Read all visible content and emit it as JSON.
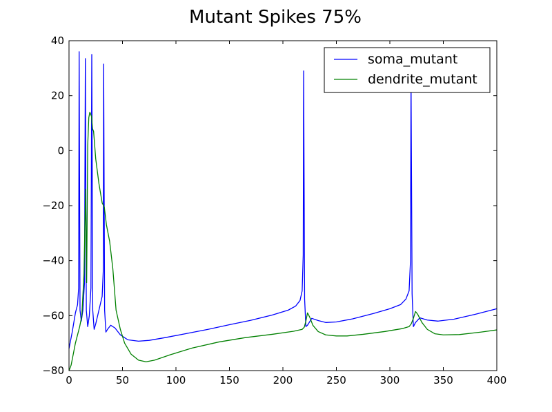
{
  "chart_data": {
    "type": "line",
    "title": "Mutant Spikes 75%",
    "xlabel": "",
    "ylabel": "",
    "xlim": [
      0,
      400
    ],
    "ylim": [
      -80,
      40
    ],
    "x_ticks": [
      0,
      50,
      100,
      150,
      200,
      250,
      300,
      350,
      400
    ],
    "y_ticks": [
      -80,
      -60,
      -40,
      -20,
      0,
      20,
      40
    ],
    "x_tick_labels": [
      "0",
      "50",
      "100",
      "150",
      "200",
      "250",
      "300",
      "350",
      "400"
    ],
    "y_tick_labels": [
      "−80",
      "−60",
      "−40",
      "−20",
      "0",
      "20",
      "40"
    ],
    "grid": false,
    "legend": "top-right",
    "series": [
      {
        "name": "soma_mutant",
        "color": "#0000ff",
        "points": [
          [
            0,
            -72
          ],
          [
            3,
            -66
          ],
          [
            6,
            -59
          ],
          [
            8,
            -56
          ],
          [
            9,
            -50
          ],
          [
            9.5,
            36
          ],
          [
            10.3,
            -58
          ],
          [
            11.5,
            -62
          ],
          [
            13,
            -58
          ],
          [
            14.5,
            -48
          ],
          [
            15.3,
            33.5
          ],
          [
            16.2,
            -58
          ],
          [
            17.5,
            -64
          ],
          [
            19,
            -60
          ],
          [
            20.5,
            -50
          ],
          [
            21.3,
            35
          ],
          [
            22.2,
            -58
          ],
          [
            23.5,
            -65
          ],
          [
            25,
            -63
          ],
          [
            28,
            -58
          ],
          [
            31,
            -53
          ],
          [
            32,
            -44
          ],
          [
            32.4,
            31.5
          ],
          [
            33.3,
            -58
          ],
          [
            34.5,
            -66
          ],
          [
            36,
            -65
          ],
          [
            39,
            -63.5
          ],
          [
            43,
            -64.5
          ],
          [
            48,
            -67
          ],
          [
            55,
            -68.8
          ],
          [
            65,
            -69.3
          ],
          [
            75,
            -69
          ],
          [
            90,
            -68
          ],
          [
            110,
            -66.5
          ],
          [
            130,
            -65
          ],
          [
            150,
            -63.3
          ],
          [
            170,
            -61.7
          ],
          [
            190,
            -59.8
          ],
          [
            205,
            -58
          ],
          [
            212,
            -56.5
          ],
          [
            216,
            -54.5
          ],
          [
            218,
            -51
          ],
          [
            219,
            -38
          ],
          [
            219.4,
            29
          ],
          [
            220.3,
            -54
          ],
          [
            221.5,
            -64
          ],
          [
            223,
            -63.5
          ],
          [
            227,
            -61
          ],
          [
            233,
            -61.8
          ],
          [
            240,
            -62.5
          ],
          [
            250,
            -62.3
          ],
          [
            265,
            -61.2
          ],
          [
            285,
            -59.2
          ],
          [
            300,
            -57.5
          ],
          [
            310,
            -56
          ],
          [
            315,
            -54
          ],
          [
            318,
            -51
          ],
          [
            319.3,
            -40
          ],
          [
            319.8,
            27
          ],
          [
            320.8,
            -52
          ],
          [
            322,
            -64
          ],
          [
            324,
            -62.5
          ],
          [
            328,
            -60.8
          ],
          [
            335,
            -61.6
          ],
          [
            345,
            -62
          ],
          [
            360,
            -61.3
          ],
          [
            380,
            -59.5
          ],
          [
            400,
            -57.5
          ]
        ]
      },
      {
        "name": "dendrite_mutant",
        "color": "#008000",
        "points": [
          [
            0,
            -80
          ],
          [
            2,
            -78
          ],
          [
            4,
            -74
          ],
          [
            6,
            -70
          ],
          [
            8,
            -67
          ],
          [
            10,
            -64
          ],
          [
            12,
            -60
          ],
          [
            14,
            -45
          ],
          [
            15.5,
            -14
          ],
          [
            16.5,
            -48
          ],
          [
            17.5,
            2
          ],
          [
            18.5,
            12
          ],
          [
            19.5,
            14
          ],
          [
            21,
            12.5
          ],
          [
            22,
            8
          ],
          [
            23,
            7
          ],
          [
            25,
            -3
          ],
          [
            28,
            -12
          ],
          [
            31,
            -19
          ],
          [
            33,
            -20.5
          ],
          [
            35,
            -27
          ],
          [
            38,
            -33
          ],
          [
            41,
            -43
          ],
          [
            44,
            -58
          ],
          [
            48,
            -65
          ],
          [
            52,
            -70
          ],
          [
            58,
            -74
          ],
          [
            65,
            -76.2
          ],
          [
            72,
            -76.8
          ],
          [
            80,
            -76.2
          ],
          [
            95,
            -74.2
          ],
          [
            115,
            -71.8
          ],
          [
            140,
            -69.6
          ],
          [
            165,
            -68
          ],
          [
            190,
            -66.8
          ],
          [
            210,
            -65.7
          ],
          [
            218,
            -65
          ],
          [
            220,
            -64.2
          ],
          [
            221.5,
            -62
          ],
          [
            223,
            -59
          ],
          [
            225,
            -60.5
          ],
          [
            228,
            -63.5
          ],
          [
            233,
            -65.8
          ],
          [
            240,
            -67
          ],
          [
            250,
            -67.4
          ],
          [
            260,
            -67.4
          ],
          [
            275,
            -66.8
          ],
          [
            295,
            -65.8
          ],
          [
            312,
            -64.7
          ],
          [
            318,
            -64
          ],
          [
            320,
            -63
          ],
          [
            322,
            -61
          ],
          [
            324,
            -58.5
          ],
          [
            326,
            -59.5
          ],
          [
            330,
            -62.5
          ],
          [
            335,
            -65
          ],
          [
            342,
            -66.6
          ],
          [
            350,
            -67
          ],
          [
            365,
            -66.9
          ],
          [
            385,
            -66
          ],
          [
            400,
            -65.2
          ]
        ]
      }
    ]
  }
}
